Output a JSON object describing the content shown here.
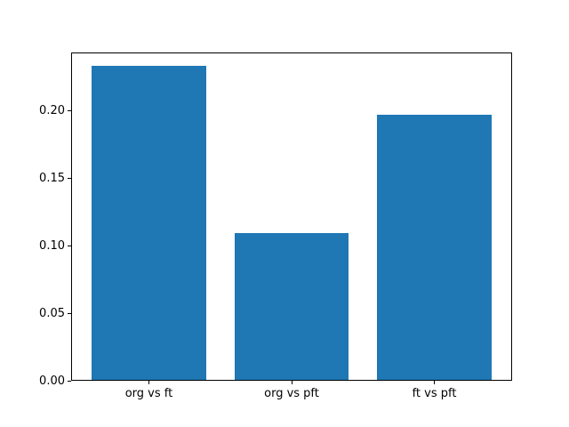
{
  "chart_data": {
    "type": "bar",
    "title": "",
    "xlabel": "",
    "ylabel": "",
    "categories": [
      "org vs ft",
      "org vs pft",
      "ft vs pft"
    ],
    "values": [
      0.233,
      0.109,
      0.197
    ],
    "ylim": [
      0,
      0.243
    ],
    "xlim": [
      -0.545,
      2.545
    ],
    "yticks": [
      0.0,
      0.05,
      0.1,
      0.15,
      0.2
    ],
    "ytick_labels": [
      "0.00",
      "0.05",
      "0.10",
      "0.15",
      "0.20"
    ],
    "bar_width_units": 0.8,
    "grid": false,
    "legend": null,
    "colors": {
      "bar": "#1f77b4",
      "axis": "#000000",
      "text": "#000000",
      "background": "#ffffff"
    }
  }
}
